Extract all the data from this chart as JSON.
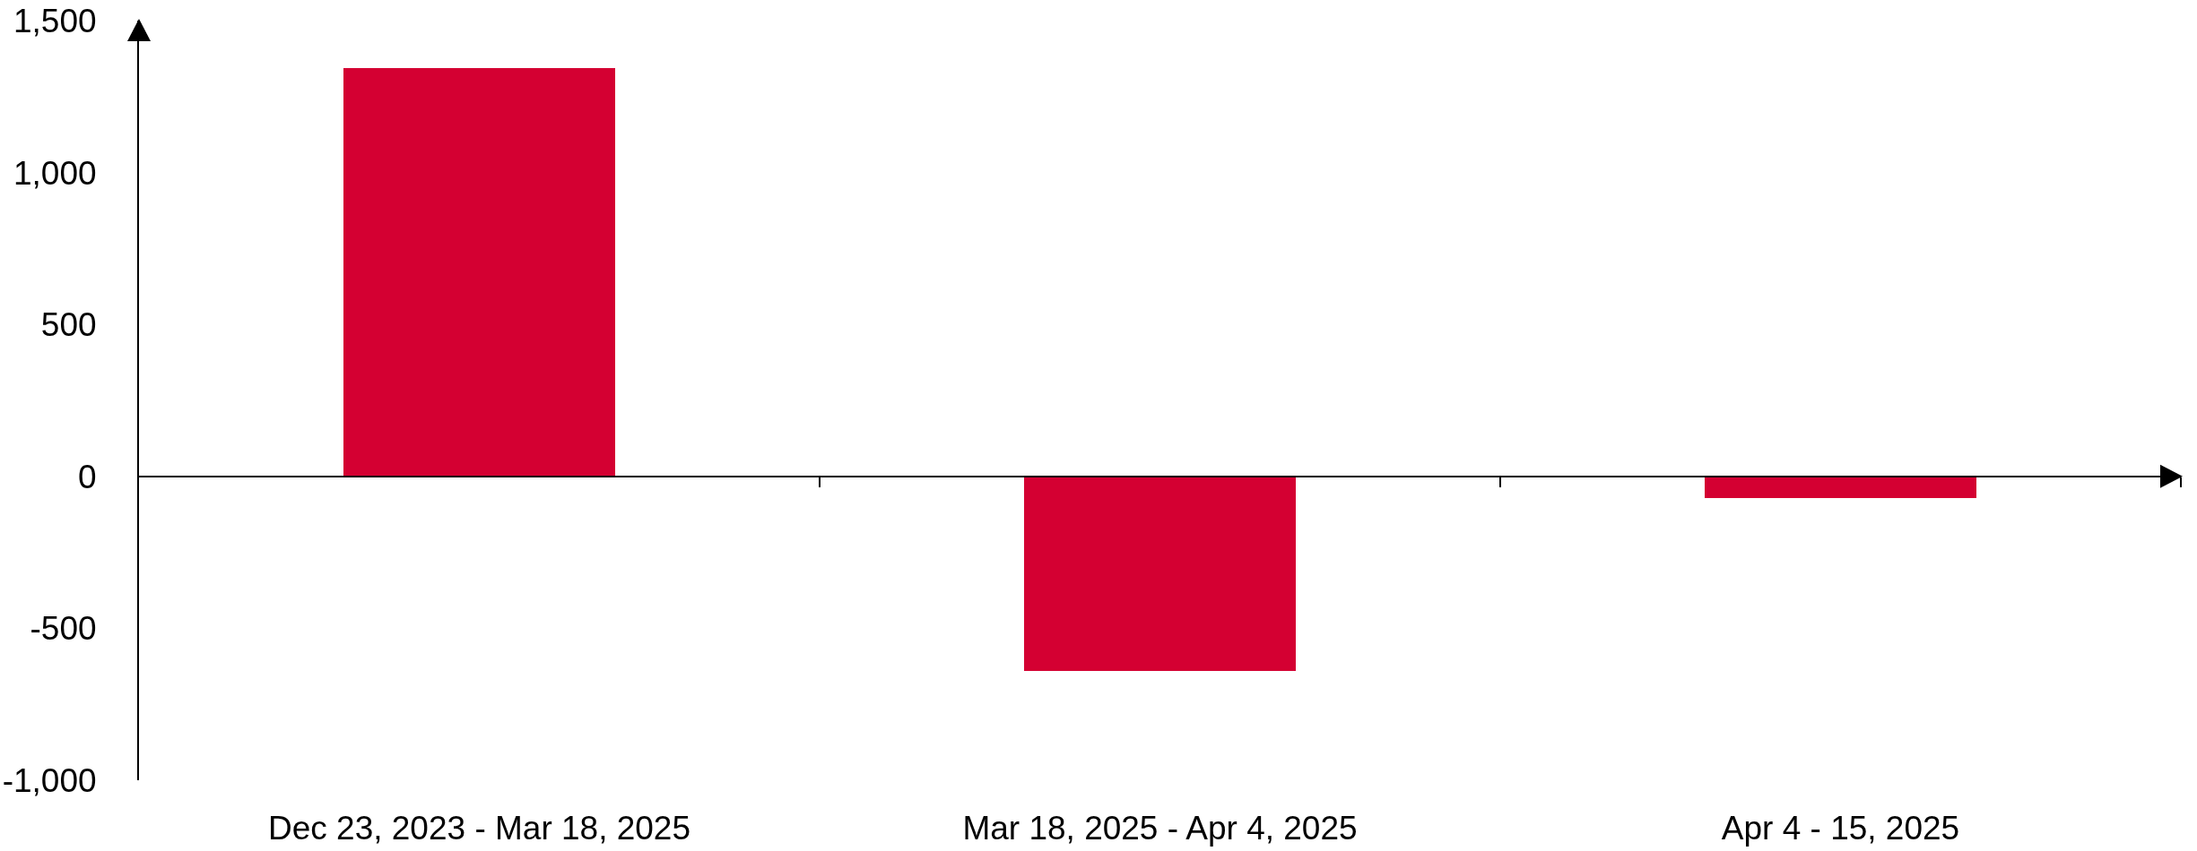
{
  "chart_data": {
    "type": "bar",
    "categories": [
      "Dec 23, 2023 - Mar 18, 2025",
      "Mar 18, 2025 - Apr 4, 2025",
      "Apr 4 - 15, 2025"
    ],
    "values": [
      1345,
      -640,
      -70
    ],
    "color": "#d40032",
    "ylim": [
      -1000,
      1500
    ],
    "yticks": [
      {
        "value": -1000,
        "label": "-1,000"
      },
      -500,
      0,
      500,
      {
        "value": 1000,
        "label": "1,000"
      },
      {
        "value": 1500,
        "label": "1,500"
      }
    ]
  }
}
